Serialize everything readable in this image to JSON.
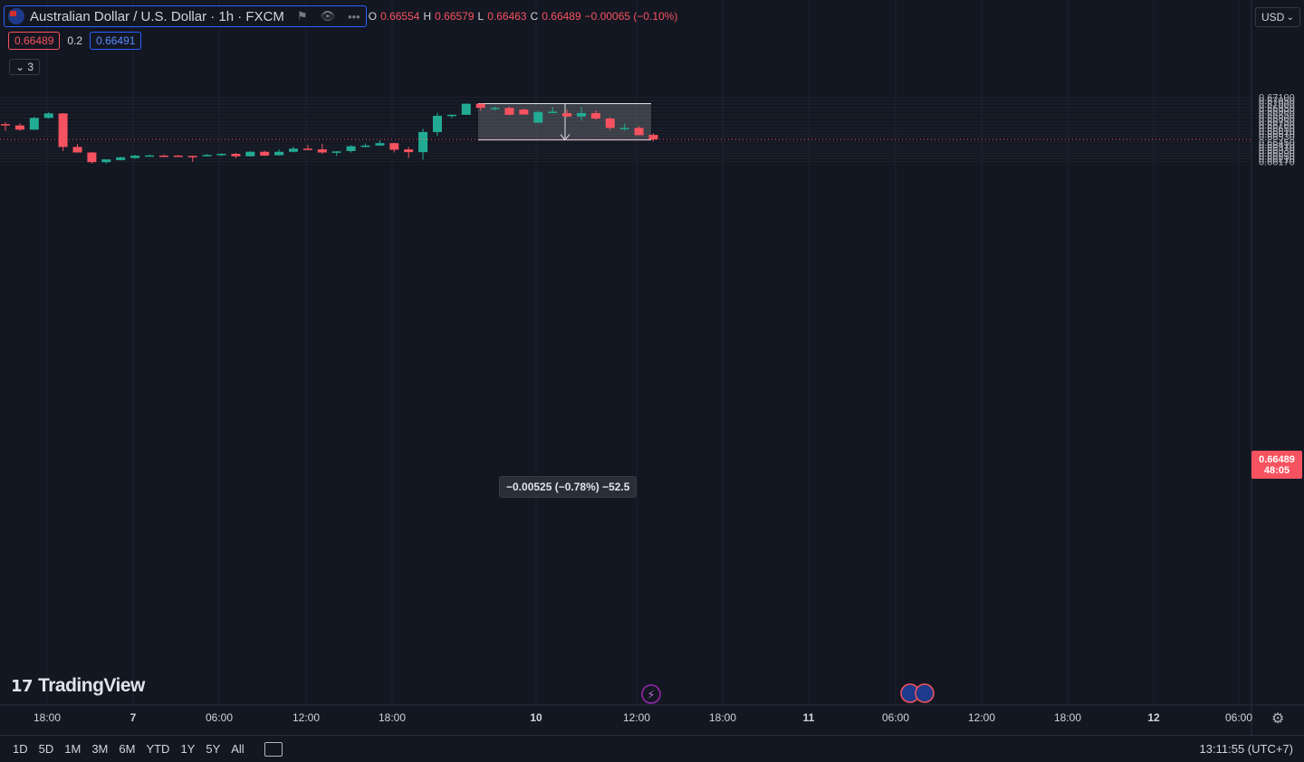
{
  "symbol": {
    "title": "Australian Dollar / U.S. Dollar · 1h · FXCM",
    "flag_icon": "aud-usd-flag-icon"
  },
  "ohlc": {
    "o_label": "O",
    "o_value": "0.66554",
    "h_label": "H",
    "h_value": "0.66579",
    "l_label": "L",
    "l_value": "0.66463",
    "c_label": "C",
    "c_value": "0.66489",
    "change": "−0.00065 (−0.10%)"
  },
  "quote": {
    "bid": "0.66489",
    "spread": "0.2",
    "ask": "0.66491"
  },
  "indicators_toggle": {
    "count": "3"
  },
  "currency_button": {
    "label": "USD"
  },
  "last_price": {
    "value": "0.66489",
    "countdown": "48:05"
  },
  "measure": {
    "label": "−0.00525 (−0.78%) −52.5",
    "start_price": 0.67007,
    "end_price": 0.66482
  },
  "bottom_bar": {
    "timeframes": [
      "1D",
      "5D",
      "1M",
      "3M",
      "6M",
      "YTD",
      "1Y",
      "5Y",
      "All"
    ],
    "clock": "13:11:55 (UTC+7)"
  },
  "logo": {
    "text": "TradingView"
  },
  "colors": {
    "up": "#22ab94",
    "down": "#f7525f",
    "bg": "#131722",
    "grid": "#1e222d",
    "accent": "#2962ff"
  },
  "chart_data": {
    "type": "candlestick",
    "y_ticks": [
      "0.67100",
      "0.67050",
      "0.67000",
      "0.66950",
      "0.66900",
      "0.66850",
      "0.66800",
      "0.66750",
      "0.66700",
      "0.66650",
      "0.66610",
      "0.66570",
      "0.66530",
      "0.66450",
      "0.66410",
      "0.66370",
      "0.66330",
      "0.66290",
      "0.66250",
      "0.66210",
      "0.66170"
    ],
    "x_ticks": [
      "18:00",
      "7",
      "06:00",
      "12:00",
      "18:00",
      "10",
      "12:00",
      "18:00",
      "11",
      "06:00",
      "12:00",
      "18:00",
      "12",
      "06:00"
    ],
    "candles": [
      {
        "o": 0.6671,
        "h": 0.66735,
        "l": 0.66615,
        "c": 0.667
      },
      {
        "o": 0.6669,
        "h": 0.6672,
        "l": 0.66615,
        "c": 0.6663
      },
      {
        "o": 0.6663,
        "h": 0.66815,
        "l": 0.6663,
        "c": 0.668
      },
      {
        "o": 0.668,
        "h": 0.6688,
        "l": 0.6679,
        "c": 0.66865
      },
      {
        "o": 0.66865,
        "h": 0.6687,
        "l": 0.6632,
        "c": 0.6638
      },
      {
        "o": 0.6638,
        "h": 0.6642,
        "l": 0.663,
        "c": 0.663
      },
      {
        "o": 0.663,
        "h": 0.66305,
        "l": 0.6614,
        "c": 0.6616
      },
      {
        "o": 0.6616,
        "h": 0.662,
        "l": 0.6614,
        "c": 0.662
      },
      {
        "o": 0.6619,
        "h": 0.6624,
        "l": 0.66185,
        "c": 0.6623
      },
      {
        "o": 0.6622,
        "h": 0.66265,
        "l": 0.6621,
        "c": 0.66255
      },
      {
        "o": 0.66255,
        "h": 0.6627,
        "l": 0.6625,
        "c": 0.66258
      },
      {
        "o": 0.66255,
        "h": 0.6627,
        "l": 0.6624,
        "c": 0.6625
      },
      {
        "o": 0.66255,
        "h": 0.66265,
        "l": 0.6624,
        "c": 0.66245
      },
      {
        "o": 0.6625,
        "h": 0.66255,
        "l": 0.66165,
        "c": 0.66248
      },
      {
        "o": 0.66245,
        "h": 0.66275,
        "l": 0.6624,
        "c": 0.66265
      },
      {
        "o": 0.66265,
        "h": 0.66285,
        "l": 0.6625,
        "c": 0.6628
      },
      {
        "o": 0.6628,
        "h": 0.66295,
        "l": 0.66215,
        "c": 0.66245
      },
      {
        "o": 0.66245,
        "h": 0.6632,
        "l": 0.6624,
        "c": 0.6631
      },
      {
        "o": 0.6631,
        "h": 0.66325,
        "l": 0.6625,
        "c": 0.66255
      },
      {
        "o": 0.6626,
        "h": 0.66345,
        "l": 0.66255,
        "c": 0.6631
      },
      {
        "o": 0.6631,
        "h": 0.66385,
        "l": 0.663,
        "c": 0.66355
      },
      {
        "o": 0.66355,
        "h": 0.6641,
        "l": 0.6634,
        "c": 0.66345
      },
      {
        "o": 0.66345,
        "h": 0.66425,
        "l": 0.6628,
        "c": 0.663
      },
      {
        "o": 0.663,
        "h": 0.6632,
        "l": 0.6625,
        "c": 0.66315
      },
      {
        "o": 0.6632,
        "h": 0.66405,
        "l": 0.663,
        "c": 0.6639
      },
      {
        "o": 0.66385,
        "h": 0.6643,
        "l": 0.66375,
        "c": 0.664
      },
      {
        "o": 0.664,
        "h": 0.66475,
        "l": 0.66395,
        "c": 0.66435
      },
      {
        "o": 0.66435,
        "h": 0.6644,
        "l": 0.663,
        "c": 0.6634
      },
      {
        "o": 0.66345,
        "h": 0.6638,
        "l": 0.6622,
        "c": 0.66305
      },
      {
        "o": 0.66305,
        "h": 0.6664,
        "l": 0.66195,
        "c": 0.66595
      },
      {
        "o": 0.66595,
        "h": 0.66875,
        "l": 0.6654,
        "c": 0.6683
      },
      {
        "o": 0.6683,
        "h": 0.6685,
        "l": 0.66795,
        "c": 0.66845
      },
      {
        "o": 0.66845,
        "h": 0.6701,
        "l": 0.6684,
        "c": 0.67005
      },
      {
        "o": 0.67005,
        "h": 0.67007,
        "l": 0.66905,
        "c": 0.66945
      },
      {
        "o": 0.66945,
        "h": 0.66965,
        "l": 0.6691,
        "c": 0.66945
      },
      {
        "o": 0.66945,
        "h": 0.6696,
        "l": 0.66845,
        "c": 0.66845
      },
      {
        "o": 0.6692,
        "h": 0.66935,
        "l": 0.66845,
        "c": 0.6685
      },
      {
        "o": 0.6673,
        "h": 0.669,
        "l": 0.6673,
        "c": 0.66885
      },
      {
        "o": 0.66885,
        "h": 0.6696,
        "l": 0.6687,
        "c": 0.6689
      },
      {
        "o": 0.6687,
        "h": 0.6692,
        "l": 0.6681,
        "c": 0.6682
      },
      {
        "o": 0.6682,
        "h": 0.6696,
        "l": 0.6676,
        "c": 0.6687
      },
      {
        "o": 0.6687,
        "h": 0.6691,
        "l": 0.6677,
        "c": 0.6679
      },
      {
        "o": 0.6679,
        "h": 0.6681,
        "l": 0.66625,
        "c": 0.66655
      },
      {
        "o": 0.66655,
        "h": 0.6672,
        "l": 0.66615,
        "c": 0.66655
      },
      {
        "o": 0.66655,
        "h": 0.6668,
        "l": 0.6655,
        "c": 0.6655
      },
      {
        "o": 0.66554,
        "h": 0.66579,
        "l": 0.66463,
        "c": 0.66489
      }
    ]
  }
}
